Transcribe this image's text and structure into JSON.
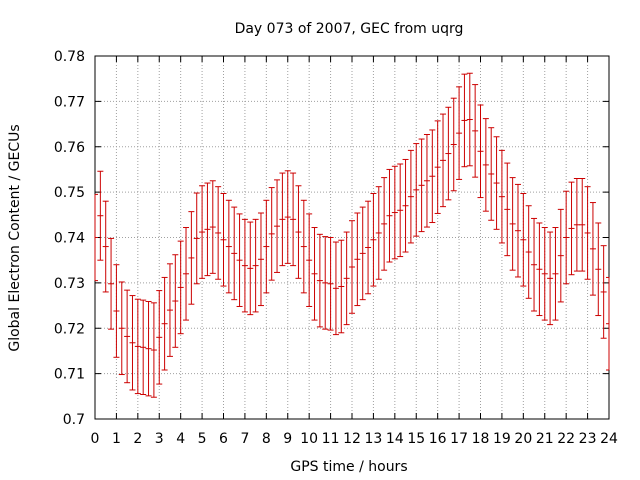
{
  "chart_data": {
    "type": "scatter",
    "title": "Day 073 of 2007, GEC from uqrg",
    "xlabel": "GPS time / hours",
    "ylabel": "Global Electron Content / GECUs",
    "xlim": [
      0,
      24
    ],
    "ylim": [
      0.7,
      0.78
    ],
    "xticks": [
      "0",
      "1",
      "2",
      "3",
      "4",
      "5",
      "6",
      "7",
      "8",
      "9",
      "10",
      "11",
      "12",
      "13",
      "14",
      "15",
      "16",
      "17",
      "18",
      "19",
      "20",
      "21",
      "22",
      "23",
      "24"
    ],
    "yticks": [
      "0.7",
      "0.71",
      "0.72",
      "0.73",
      "0.74",
      "0.75",
      "0.76",
      "0.77",
      "0.78"
    ],
    "grid": true,
    "series": [
      {
        "color": "#cc0000",
        "marker": "errorbar",
        "x": [
          0.0,
          0.25,
          0.5,
          0.75,
          1.0,
          1.25,
          1.5,
          1.75,
          2.0,
          2.25,
          2.5,
          2.75,
          3.0,
          3.25,
          3.5,
          3.75,
          4.0,
          4.25,
          4.5,
          4.75,
          5.0,
          5.25,
          5.5,
          5.75,
          6.0,
          6.25,
          6.5,
          6.75,
          7.0,
          7.25,
          7.5,
          7.75,
          8.0,
          8.25,
          8.5,
          8.75,
          9.0,
          9.25,
          9.5,
          9.75,
          10.0,
          10.25,
          10.5,
          10.75,
          11.0,
          11.25,
          11.5,
          11.75,
          12.0,
          12.25,
          12.5,
          12.75,
          13.0,
          13.25,
          13.5,
          13.75,
          14.0,
          14.25,
          14.5,
          14.75,
          15.0,
          15.25,
          15.5,
          15.75,
          16.0,
          16.25,
          16.5,
          16.75,
          17.0,
          17.25,
          17.5,
          17.75,
          18.0,
          18.25,
          18.5,
          18.75,
          19.0,
          19.25,
          19.5,
          19.75,
          20.0,
          20.25,
          20.5,
          20.75,
          21.0,
          21.25,
          21.5,
          21.75,
          22.0,
          22.25,
          22.5,
          22.75,
          23.0,
          23.25,
          23.5,
          23.75,
          24.0
        ],
        "y": [
          0.74,
          0.7448,
          0.738,
          0.7298,
          0.7238,
          0.72,
          0.7182,
          0.7168,
          0.716,
          0.7158,
          0.7155,
          0.7152,
          0.718,
          0.721,
          0.724,
          0.726,
          0.729,
          0.732,
          0.7355,
          0.7398,
          0.7412,
          0.7418,
          0.7423,
          0.741,
          0.7395,
          0.738,
          0.7365,
          0.735,
          0.7338,
          0.7332,
          0.7338,
          0.7352,
          0.738,
          0.7408,
          0.7425,
          0.744,
          0.7445,
          0.744,
          0.7412,
          0.738,
          0.735,
          0.732,
          0.7305,
          0.73,
          0.7298,
          0.7288,
          0.7292,
          0.731,
          0.7335,
          0.7352,
          0.7365,
          0.7378,
          0.7395,
          0.741,
          0.743,
          0.7448,
          0.7455,
          0.746,
          0.747,
          0.749,
          0.7505,
          0.7515,
          0.7525,
          0.7535,
          0.7555,
          0.757,
          0.7585,
          0.7605,
          0.763,
          0.7658,
          0.766,
          0.7635,
          0.759,
          0.756,
          0.754,
          0.752,
          0.749,
          0.7462,
          0.743,
          0.7415,
          0.7395,
          0.7368,
          0.734,
          0.733,
          0.732,
          0.731,
          0.732,
          0.736,
          0.74,
          0.742,
          0.7428,
          0.7428,
          0.741,
          0.7375,
          0.733,
          0.728,
          0.721
        ],
        "err": [
          0.0095,
          0.0098,
          0.01,
          0.01,
          0.0102,
          0.0102,
          0.0102,
          0.0104,
          0.0104,
          0.0104,
          0.0104,
          0.0104,
          0.0103,
          0.0102,
          0.0102,
          0.0102,
          0.0102,
          0.0102,
          0.0102,
          0.01,
          0.0102,
          0.0102,
          0.0102,
          0.0102,
          0.0102,
          0.0102,
          0.0102,
          0.0102,
          0.0102,
          0.0102,
          0.0102,
          0.0102,
          0.0102,
          0.0102,
          0.0102,
          0.0102,
          0.0102,
          0.0102,
          0.0102,
          0.0102,
          0.0102,
          0.0102,
          0.0102,
          0.0102,
          0.0102,
          0.0102,
          0.0102,
          0.0102,
          0.0102,
          0.0102,
          0.0102,
          0.0102,
          0.0102,
          0.0102,
          0.0102,
          0.0102,
          0.0102,
          0.0102,
          0.0102,
          0.0102,
          0.0102,
          0.0102,
          0.0102,
          0.0102,
          0.0102,
          0.0102,
          0.0102,
          0.0102,
          0.0102,
          0.0102,
          0.0102,
          0.0102,
          0.0102,
          0.0102,
          0.0102,
          0.0102,
          0.0102,
          0.0102,
          0.0102,
          0.0102,
          0.0102,
          0.0102,
          0.0102,
          0.0102,
          0.0102,
          0.0102,
          0.0102,
          0.0102,
          0.0102,
          0.0102,
          0.0102,
          0.0102,
          0.0102,
          0.0102,
          0.0102,
          0.0102,
          0.0102
        ]
      }
    ]
  }
}
